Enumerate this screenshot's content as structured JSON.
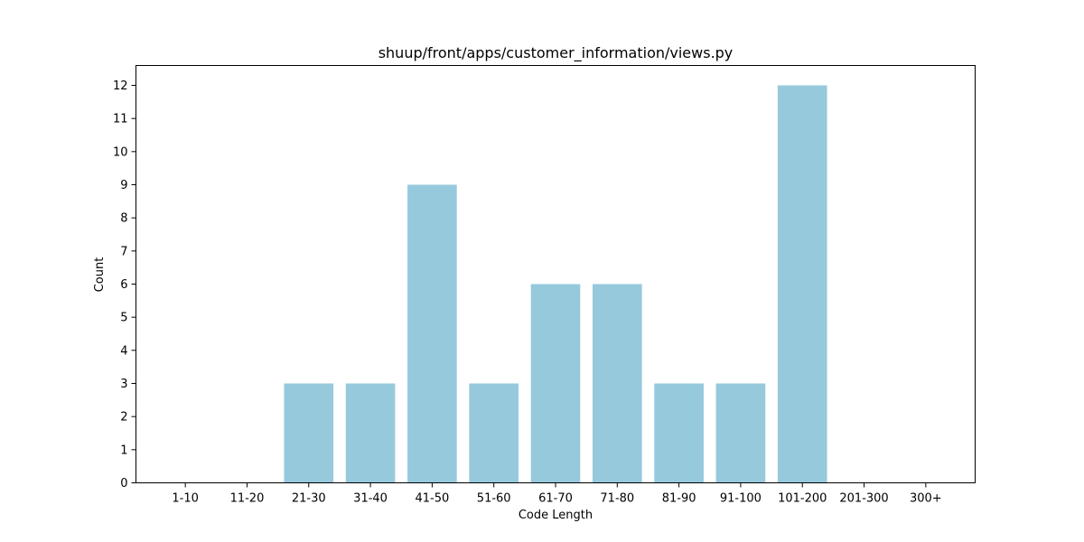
{
  "chart_data": {
    "type": "bar",
    "title": "shuup/front/apps/customer_information/views.py",
    "xlabel": "Code Length",
    "ylabel": "Count",
    "categories": [
      "1-10",
      "11-20",
      "21-30",
      "31-40",
      "41-50",
      "51-60",
      "61-70",
      "71-80",
      "81-90",
      "91-100",
      "101-200",
      "201-300",
      "300+"
    ],
    "values": [
      0,
      0,
      3,
      3,
      9,
      3,
      6,
      6,
      3,
      3,
      12,
      0,
      0
    ],
    "yticks": [
      0,
      1,
      2,
      3,
      4,
      5,
      6,
      7,
      8,
      9,
      10,
      11,
      12
    ],
    "ylim": [
      0,
      12.6
    ],
    "bar_color": "#96c9dc",
    "grid": false,
    "legend": "none"
  }
}
